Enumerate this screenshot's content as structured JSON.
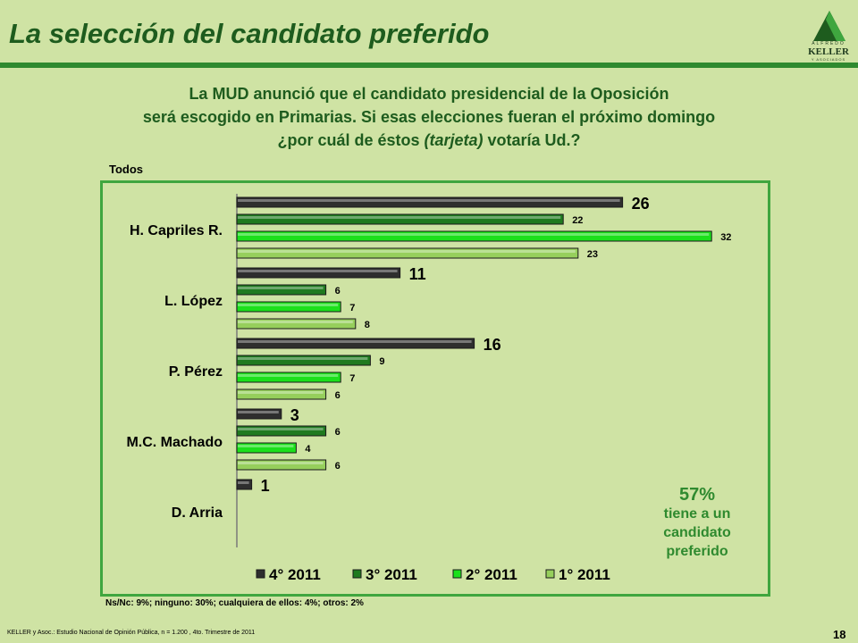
{
  "title": "La selección del candidato preferido",
  "logo": {
    "line1": "ALFREDO",
    "line2": "KELLER",
    "line3": "Y ASOCIADOS"
  },
  "question": {
    "line1": "La MUD anunció que el candidato presidencial de la Oposición",
    "line2": "será escogido en Primarias. Si esas elecciones fueran el próximo domingo",
    "line3_pre": "¿por cuál de éstos ",
    "line3_em": "(tarjeta)",
    "line3_post": " votaría Ud.?"
  },
  "panel_label": "Todos",
  "callout": {
    "pct": "57%",
    "line1": "tiene a un",
    "line2": "candidato",
    "line3": "preferido"
  },
  "footnote": "Ns/Nc: 9%; ninguno: 30%; cualquiera de ellos: 4%; otros: 2%",
  "source": "KELLER y Asoc.: Estudio Nacional de Opinión Pública, n = 1.200 , 4to. Trimestre de 2011",
  "page_number": "18",
  "colors": {
    "s4": "#2e2e2e",
    "s3": "#1f7a1f",
    "s2": "#1be01b",
    "s1": "#96cf5c",
    "title": "#1e5c1e",
    "border": "#3fa63f",
    "background": "#cfe3a4"
  },
  "chart_data": {
    "type": "bar",
    "orientation": "horizontal",
    "categories": [
      "H. Capriles R.",
      "L. López",
      "P. Pérez",
      "M.C. Machado",
      "D. Arria"
    ],
    "series": [
      {
        "name": "4° 2011",
        "values": [
          26,
          11,
          16,
          3,
          1
        ]
      },
      {
        "name": "3° 2011",
        "values": [
          22,
          6,
          9,
          6,
          null
        ]
      },
      {
        "name": "2° 2011",
        "values": [
          32,
          7,
          7,
          4,
          null
        ]
      },
      {
        "name": "1° 2011",
        "values": [
          23,
          8,
          6,
          6,
          null
        ]
      }
    ],
    "title": "",
    "legend_position": "bottom",
    "grid": false
  }
}
